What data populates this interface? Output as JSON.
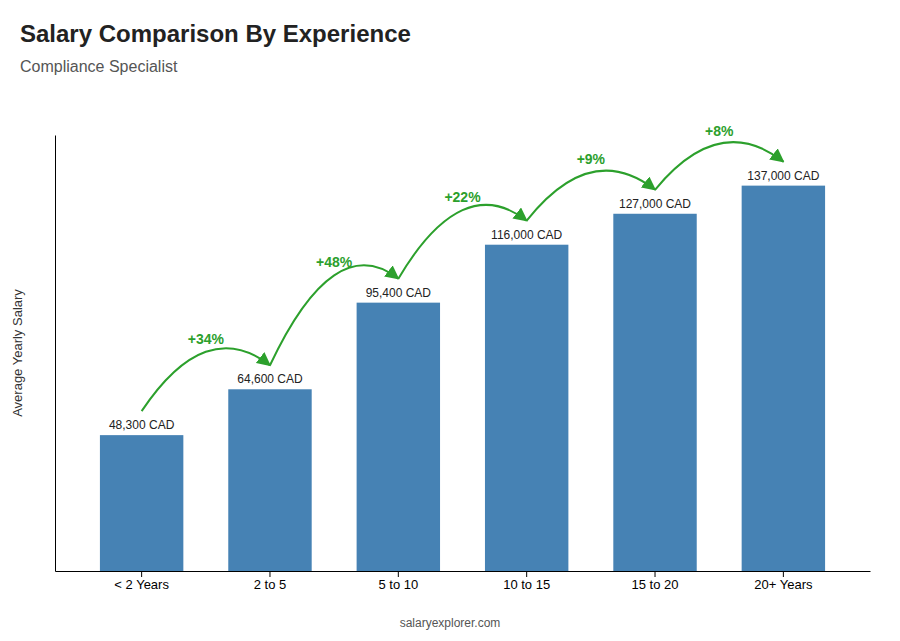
{
  "chart_data": {
    "type": "bar",
    "title": "Salary Comparison By Experience",
    "subtitle": "Compliance Specialist",
    "ylabel": "Average Yearly Salary",
    "categories": [
      "< 2 Years",
      "2 to 5",
      "5 to 10",
      "10 to 15",
      "15 to 20",
      "20+ Years"
    ],
    "values": [
      48300,
      64600,
      95400,
      116000,
      127000,
      137000
    ],
    "value_labels": [
      "48,300 CAD",
      "64,600 CAD",
      "95,400 CAD",
      "116,000 CAD",
      "127,000 CAD",
      "137,000 CAD"
    ],
    "data_labels": true,
    "annotations": [
      "+34%",
      "+48%",
      "+22%",
      "+9%",
      "+8%"
    ],
    "footer": "salaryexplorer.com",
    "ylim": [
      0,
      155000
    ],
    "tick_labels": "x",
    "grid": false
  }
}
